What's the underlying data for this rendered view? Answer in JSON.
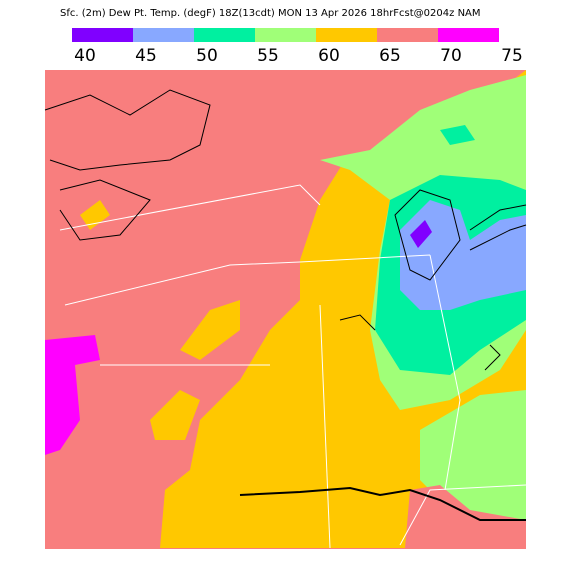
{
  "title": "Sfc. (2m) Dew Pt. Temp. (degF) 18Z(13cdt) MON 13 Apr 2026 18hrFcst@0204z NAM",
  "legend": {
    "labels": [
      40,
      45,
      50,
      55,
      60,
      65,
      70,
      75
    ],
    "colors": [
      "#8000ff",
      "#88a8ff",
      "#00f0a0",
      "#a0ff78",
      "#ffc800",
      "#f87e7e",
      "#ff00ff"
    ]
  }
}
